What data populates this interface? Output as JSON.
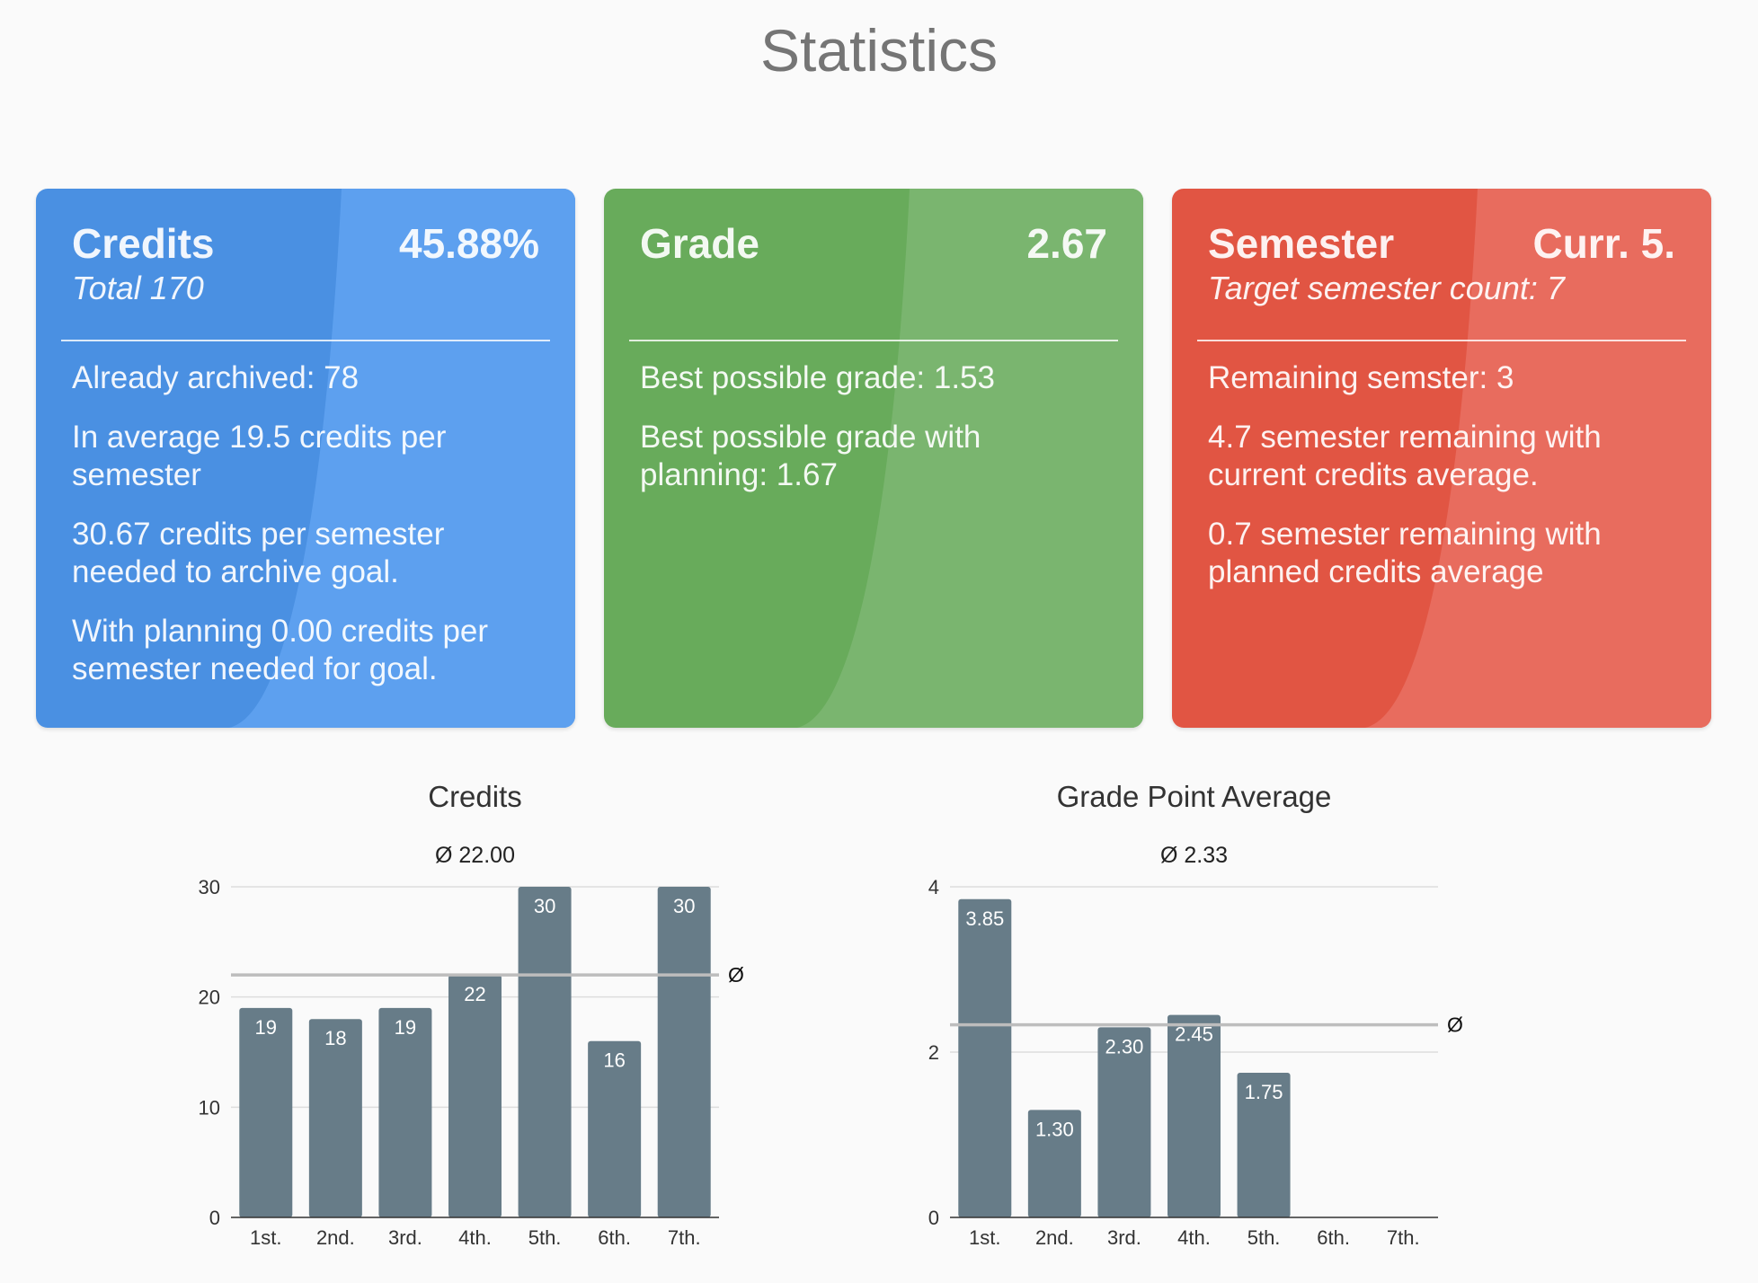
{
  "page": {
    "title": "Statistics"
  },
  "colors": {
    "blue": "#4a90e2",
    "blue_light": "#5da0ef",
    "green": "#68ab5b",
    "green_light": "#7ab56f",
    "red": "#e15543",
    "red_light": "#e86c5e",
    "bar": "#677c88",
    "avg_line": "#bdbdbd",
    "grid": "#dddddd",
    "axis": "#333333",
    "text": "#333333"
  },
  "cards": {
    "credits": {
      "title": "Credits",
      "value": "45.88%",
      "subtitle": "Total 170",
      "lines": [
        "Already archived: 78",
        "In average 19.5 credits per semester",
        "30.67 credits per semester needed to archive goal.",
        "With planning 0.00 credits per semester needed for goal."
      ]
    },
    "grade": {
      "title": "Grade",
      "value": "2.67",
      "subtitle": "",
      "lines": [
        "Best possible grade: 1.53",
        "Best possible grade with planning: 1.67"
      ]
    },
    "semester": {
      "title": "Semester",
      "value": "Curr. 5.",
      "subtitle": "Target semester count: 7",
      "lines": [
        "Remaining semster: 3",
        "4.7 semester remaining with current credits average.",
        "0.7 semester remaining with planned credits average"
      ]
    }
  },
  "chart_data": [
    {
      "type": "bar",
      "title": "Credits",
      "subtitle": "Ø 22.00",
      "categories": [
        "1st.",
        "2nd.",
        "3rd.",
        "4th.",
        "5th.",
        "6th.",
        "7th."
      ],
      "values": [
        19,
        18,
        19,
        22,
        30,
        16,
        30
      ],
      "value_labels": [
        "19",
        "18",
        "19",
        "22",
        "30",
        "16",
        "30"
      ],
      "average": 22.0,
      "average_label": "Ø",
      "ylim": [
        0,
        30
      ],
      "yticks": [
        0,
        10,
        20,
        30
      ],
      "xlabel": "",
      "ylabel": "",
      "grid": true
    },
    {
      "type": "bar",
      "title": "Grade Point Average",
      "subtitle": "Ø 2.33",
      "categories": [
        "1st.",
        "2nd.",
        "3rd.",
        "4th.",
        "5th.",
        "6th.",
        "7th."
      ],
      "values": [
        3.85,
        1.3,
        2.3,
        2.45,
        1.75,
        null,
        null
      ],
      "value_labels": [
        "3.85",
        "1.30",
        "2.30",
        "2.45",
        "1.75",
        "",
        ""
      ],
      "average": 2.33,
      "average_label": "Ø",
      "ylim": [
        0,
        4
      ],
      "yticks": [
        0,
        2,
        4
      ],
      "xlabel": "",
      "ylabel": "",
      "grid": true
    }
  ]
}
